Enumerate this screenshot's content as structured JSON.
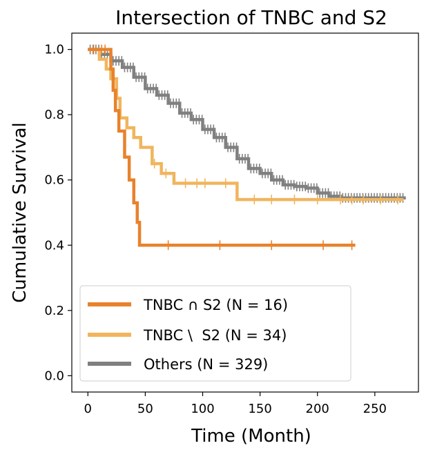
{
  "chart_data": {
    "type": "line",
    "subtype": "kaplan-meier",
    "title": "Intersection of TNBC and S2",
    "xlabel": "Time (Month)",
    "ylabel": "Cumulative Survival",
    "xlim": [
      -14,
      288
    ],
    "ylim": [
      -0.05,
      1.05
    ],
    "xticks": [
      0,
      50,
      100,
      150,
      200,
      250
    ],
    "yticks": [
      0.0,
      0.2,
      0.4,
      0.6,
      0.8,
      1.0
    ],
    "legend_position": "lower-left",
    "series": [
      {
        "name": "TNBC ∩ S2 (N = 16)",
        "color": "#e8822c",
        "steps": [
          [
            0,
            1.0
          ],
          [
            18,
            1.0
          ],
          [
            20,
            0.94
          ],
          [
            22,
            0.875
          ],
          [
            24,
            0.8125
          ],
          [
            27,
            0.75
          ],
          [
            32,
            0.67
          ],
          [
            36,
            0.6
          ],
          [
            40,
            0.53
          ],
          [
            43,
            0.47
          ],
          [
            45,
            0.4
          ],
          [
            233,
            0.4
          ]
        ],
        "censor_times": [
          5,
          12,
          15,
          70,
          115,
          160,
          205,
          230
        ]
      },
      {
        "name": "TNBC \\  S2 (N = 34)",
        "color": "#f0b55e",
        "steps": [
          [
            0,
            1.0
          ],
          [
            10,
            0.97
          ],
          [
            16,
            0.94
          ],
          [
            20,
            0.91
          ],
          [
            25,
            0.85
          ],
          [
            28,
            0.79
          ],
          [
            34,
            0.76
          ],
          [
            40,
            0.73
          ],
          [
            46,
            0.7
          ],
          [
            56,
            0.65
          ],
          [
            64,
            0.62
          ],
          [
            75,
            0.59
          ],
          [
            128,
            0.59
          ],
          [
            130,
            0.54
          ],
          [
            275,
            0.54
          ]
        ],
        "censor_times": [
          58,
          68,
          85,
          95,
          102,
          120,
          145,
          160,
          180,
          200,
          220,
          230,
          240,
          255,
          270
        ]
      },
      {
        "name": "Others (N = 329)",
        "color": "#808080",
        "steps": [
          [
            0,
            1.0
          ],
          [
            10,
            0.985
          ],
          [
            20,
            0.965
          ],
          [
            30,
            0.945
          ],
          [
            40,
            0.915
          ],
          [
            50,
            0.88
          ],
          [
            60,
            0.86
          ],
          [
            70,
            0.835
          ],
          [
            80,
            0.805
          ],
          [
            90,
            0.785
          ],
          [
            100,
            0.755
          ],
          [
            110,
            0.73
          ],
          [
            120,
            0.7
          ],
          [
            130,
            0.665
          ],
          [
            140,
            0.635
          ],
          [
            150,
            0.62
          ],
          [
            160,
            0.6
          ],
          [
            170,
            0.585
          ],
          [
            180,
            0.58
          ],
          [
            190,
            0.575
          ],
          [
            200,
            0.56
          ],
          [
            210,
            0.55
          ],
          [
            220,
            0.545
          ],
          [
            277,
            0.545
          ]
        ],
        "censor_from": 2,
        "censor_to": 276,
        "censor_step": 2.5
      }
    ]
  }
}
